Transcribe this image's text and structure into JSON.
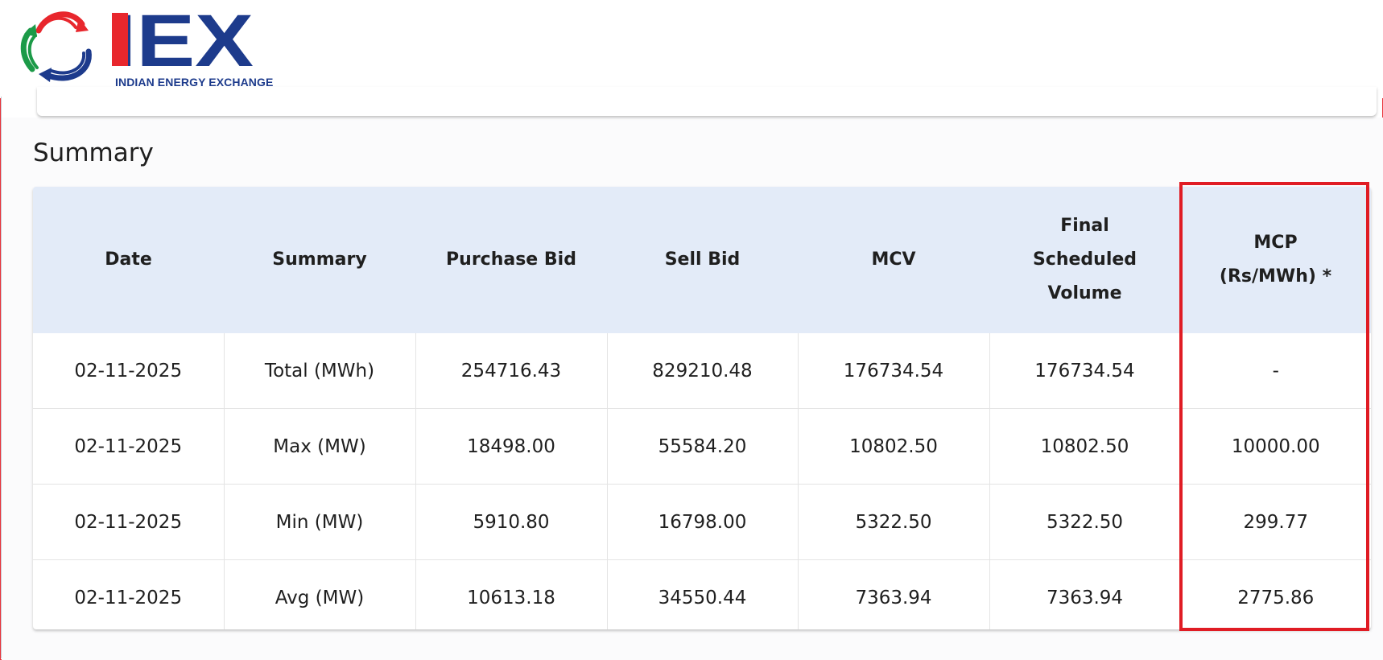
{
  "header": {
    "logo_text": "IEX",
    "logo_caption": "INDIAN ENERGY EXCHANGE"
  },
  "section": {
    "title": "Summary"
  },
  "table": {
    "columns": [
      {
        "key": "date",
        "label": "Date"
      },
      {
        "key": "summary",
        "label": "Summary"
      },
      {
        "key": "purchase_bid",
        "label": "Purchase Bid"
      },
      {
        "key": "sell_bid",
        "label": "Sell Bid"
      },
      {
        "key": "mcv",
        "label": "MCV"
      },
      {
        "key": "fsv",
        "label_lines": [
          "Final",
          "Scheduled",
          "Volume"
        ]
      },
      {
        "key": "mcp",
        "label_lines": [
          "MCP",
          "(Rs/MWh) *"
        ]
      }
    ],
    "rows": [
      [
        "02-11-2025",
        "Total (MWh)",
        "254716.43",
        "829210.48",
        "176734.54",
        "176734.54",
        "-"
      ],
      [
        "02-11-2025",
        "Max (MW)",
        "18498.00",
        "55584.20",
        "10802.50",
        "10802.50",
        "10000.00"
      ],
      [
        "02-11-2025",
        "Min (MW)",
        "5910.80",
        "16798.00",
        "5322.50",
        "5322.50",
        "299.77"
      ],
      [
        "02-11-2025",
        "Avg (MW)",
        "10613.18",
        "34550.44",
        "7363.94",
        "7363.94",
        "2775.86"
      ]
    ]
  },
  "colors": {
    "header_bg": "#e3ebf8",
    "highlight": "#e01c24",
    "logo_red": "#e8272d",
    "logo_blue": "#1d3b8c",
    "logo_green": "#1c9a48"
  }
}
